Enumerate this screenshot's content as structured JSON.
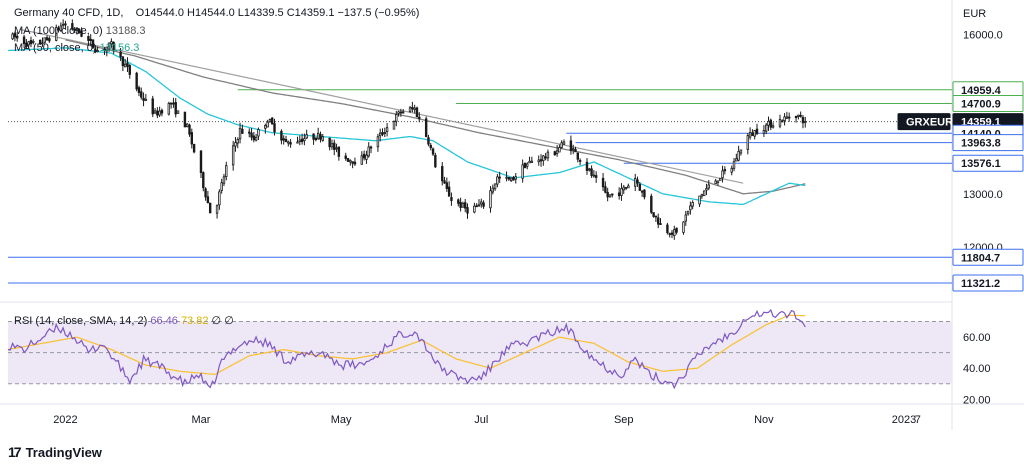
{
  "header": {
    "symbol": "Germany 40 CFD, 1D,",
    "ohlc": "O14544.0  H14544.0  L14339.5  C14359.1  −137.5 (−0.95%)",
    "ma100_label": "MA (100, close, 0)",
    "ma100_value": "13188.3",
    "ma50_label": "MA (50, close, 0)",
    "ma50_value": "13156.3"
  },
  "rsi_header": {
    "label": "RSI (14, close, SMA, 14, 2)",
    "rsi_value": "66.46",
    "sma_value": "73.82",
    "extra1": "∅",
    "extra2": "∅"
  },
  "branding": {
    "name": "TradingView",
    "logo_text": "17"
  },
  "colors": {
    "candle": "#1a1a1a",
    "ma50": "#26c6da",
    "ma100": "#808080",
    "trendline": "#a0a0a0",
    "hline_blue": "#3c6ff0",
    "hline_green": "#4caf50",
    "rsi": "#7e57c2",
    "rsi_sma": "#fbc02d",
    "rsi_band": "#ede7f6"
  },
  "chart_data": {
    "type": "candlestick",
    "currency_label": "EUR",
    "price_axis": {
      "ticks": [
        "16000.0",
        "13000.0",
        "12000.0"
      ],
      "tick_values": [
        16000,
        13000,
        12000
      ],
      "range": [
        11000,
        16500
      ]
    },
    "time_axis": {
      "ticks": [
        "2022",
        "Mar",
        "May",
        "Jul",
        "Sep",
        "Nov",
        "2023",
        "7"
      ],
      "tick_days": [
        0,
        59,
        120,
        181,
        243,
        304,
        365,
        371
      ],
      "range_days": [
        -25,
        385
      ]
    },
    "price_labels": [
      {
        "text": "14959.4",
        "value": 14959.4,
        "style": "green"
      },
      {
        "text": "14700.9",
        "value": 14700.9,
        "style": "green"
      },
      {
        "text": "GRXEUR",
        "value": 14359.1,
        "style": "dark"
      },
      {
        "text": "14359.1",
        "value": 14359.1,
        "style": "dark"
      },
      {
        "text": "14140.0",
        "value": 14140.0,
        "style": "blue"
      },
      {
        "text": "13963.8",
        "value": 13963.8,
        "style": "blue"
      },
      {
        "text": "13576.1",
        "value": 13576.1,
        "style": "blue"
      },
      {
        "text": "11804.7",
        "value": 11804.7,
        "style": "blue"
      },
      {
        "text": "11321.2",
        "value": 11321.2,
        "style": "blue"
      }
    ],
    "horizontal_levels": [
      {
        "value": 14959.4,
        "from_day": 75,
        "color": "green"
      },
      {
        "value": 14700.9,
        "from_day": 170,
        "color": "green"
      },
      {
        "value": 14140.0,
        "from_day": 218,
        "color": "blue"
      },
      {
        "value": 13963.8,
        "from_day": 222,
        "color": "blue"
      },
      {
        "value": 13576.1,
        "from_day": 243,
        "color": "blue"
      },
      {
        "value": 11804.7,
        "from_day": -25,
        "color": "blue"
      },
      {
        "value": 11321.2,
        "from_day": -25,
        "color": "blue"
      }
    ],
    "last_price": 14359.1,
    "trendline": {
      "from": [
        -20,
        16100
      ],
      "to": [
        295,
        13200
      ]
    },
    "price_anchors": [
      [
        -22,
        15950
      ],
      [
        -15,
        15800
      ],
      [
        -8,
        15900
      ],
      [
        -1,
        16200
      ],
      [
        6,
        16050
      ],
      [
        14,
        15700
      ],
      [
        20,
        15800
      ],
      [
        27,
        15350
      ],
      [
        32,
        14900
      ],
      [
        39,
        14500
      ],
      [
        46,
        14700
      ],
      [
        53,
        14250
      ],
      [
        58,
        13500
      ],
      [
        64,
        12500
      ],
      [
        70,
        13500
      ],
      [
        76,
        14200
      ],
      [
        82,
        14050
      ],
      [
        88,
        14400
      ],
      [
        96,
        13950
      ],
      [
        104,
        14050
      ],
      [
        112,
        14100
      ],
      [
        120,
        13700
      ],
      [
        128,
        13600
      ],
      [
        134,
        13950
      ],
      [
        140,
        14250
      ],
      [
        146,
        14550
      ],
      [
        152,
        14600
      ],
      [
        158,
        14000
      ],
      [
        162,
        13400
      ],
      [
        168,
        12900
      ],
      [
        175,
        12700
      ],
      [
        182,
        12800
      ],
      [
        188,
        13300
      ],
      [
        194,
        13250
      ],
      [
        200,
        13550
      ],
      [
        206,
        13650
      ],
      [
        212,
        13750
      ],
      [
        218,
        14000
      ],
      [
        224,
        13650
      ],
      [
        230,
        13300
      ],
      [
        236,
        12950
      ],
      [
        242,
        13050
      ],
      [
        248,
        13300
      ],
      [
        254,
        12750
      ],
      [
        260,
        12350
      ],
      [
        266,
        12250
      ],
      [
        272,
        12750
      ],
      [
        278,
        13050
      ],
      [
        284,
        13300
      ],
      [
        290,
        13500
      ],
      [
        296,
        14050
      ],
      [
        301,
        14200
      ],
      [
        306,
        14300
      ],
      [
        312,
        14400
      ],
      [
        318,
        14500
      ],
      [
        322,
        14359.1
      ]
    ],
    "ma50_anchors": [
      [
        -25,
        15700
      ],
      [
        0,
        15750
      ],
      [
        20,
        15650
      ],
      [
        35,
        15300
      ],
      [
        50,
        14800
      ],
      [
        62,
        14500
      ],
      [
        75,
        14300
      ],
      [
        90,
        14150
      ],
      [
        105,
        14100
      ],
      [
        120,
        14050
      ],
      [
        135,
        14000
      ],
      [
        150,
        14080
      ],
      [
        160,
        14000
      ],
      [
        175,
        13600
      ],
      [
        195,
        13300
      ],
      [
        215,
        13400
      ],
      [
        230,
        13600
      ],
      [
        245,
        13300
      ],
      [
        260,
        13000
      ],
      [
        280,
        12850
      ],
      [
        295,
        12800
      ],
      [
        305,
        13000
      ],
      [
        315,
        13200
      ],
      [
        322,
        13156.3
      ]
    ],
    "ma100_anchors": [
      [
        0,
        15900
      ],
      [
        30,
        15600
      ],
      [
        60,
        15200
      ],
      [
        90,
        14900
      ],
      [
        120,
        14700
      ],
      [
        150,
        14450
      ],
      [
        180,
        14150
      ],
      [
        210,
        13900
      ],
      [
        240,
        13650
      ],
      [
        270,
        13350
      ],
      [
        295,
        13000
      ],
      [
        308,
        13050
      ],
      [
        322,
        13188.3
      ]
    ],
    "rsi_axis": {
      "ticks": [
        "60.00",
        "40.00",
        "20.00"
      ],
      "tick_values": [
        60,
        40,
        20
      ],
      "range": [
        17,
        80
      ]
    },
    "rsi_levels": [
      70,
      50,
      30
    ],
    "rsi_anchors": [
      [
        -25,
        55
      ],
      [
        -18,
        52
      ],
      [
        -10,
        60
      ],
      [
        -3,
        66
      ],
      [
        4,
        60
      ],
      [
        10,
        50
      ],
      [
        16,
        56
      ],
      [
        22,
        44
      ],
      [
        28,
        32
      ],
      [
        34,
        45
      ],
      [
        40,
        42
      ],
      [
        46,
        36
      ],
      [
        52,
        30
      ],
      [
        58,
        36
      ],
      [
        63,
        25
      ],
      [
        68,
        44
      ],
      [
        75,
        55
      ],
      [
        82,
        58
      ],
      [
        88,
        56
      ],
      [
        96,
        45
      ],
      [
        104,
        48
      ],
      [
        112,
        50
      ],
      [
        120,
        42
      ],
      [
        128,
        42
      ],
      [
        134,
        46
      ],
      [
        140,
        55
      ],
      [
        146,
        62
      ],
      [
        152,
        64
      ],
      [
        158,
        52
      ],
      [
        162,
        42
      ],
      [
        168,
        36
      ],
      [
        175,
        32
      ],
      [
        182,
        35
      ],
      [
        188,
        46
      ],
      [
        194,
        54
      ],
      [
        200,
        56
      ],
      [
        206,
        60
      ],
      [
        212,
        63
      ],
      [
        218,
        66
      ],
      [
        224,
        56
      ],
      [
        230,
        46
      ],
      [
        236,
        40
      ],
      [
        242,
        36
      ],
      [
        248,
        46
      ],
      [
        254,
        36
      ],
      [
        260,
        32
      ],
      [
        266,
        30
      ],
      [
        272,
        42
      ],
      [
        278,
        52
      ],
      [
        284,
        58
      ],
      [
        290,
        62
      ],
      [
        296,
        73
      ],
      [
        301,
        75
      ],
      [
        306,
        75
      ],
      [
        312,
        75
      ],
      [
        318,
        74
      ],
      [
        322,
        66.5
      ]
    ],
    "rsi_sma_anchors": [
      [
        -25,
        52
      ],
      [
        -10,
        56
      ],
      [
        5,
        60
      ],
      [
        20,
        52
      ],
      [
        35,
        42
      ],
      [
        50,
        38
      ],
      [
        65,
        36
      ],
      [
        80,
        48
      ],
      [
        95,
        52
      ],
      [
        110,
        48
      ],
      [
        125,
        46
      ],
      [
        140,
        50
      ],
      [
        155,
        58
      ],
      [
        170,
        46
      ],
      [
        185,
        40
      ],
      [
        200,
        50
      ],
      [
        215,
        60
      ],
      [
        230,
        56
      ],
      [
        245,
        44
      ],
      [
        260,
        38
      ],
      [
        275,
        40
      ],
      [
        290,
        55
      ],
      [
        305,
        68
      ],
      [
        315,
        74
      ],
      [
        322,
        73.8
      ]
    ]
  }
}
